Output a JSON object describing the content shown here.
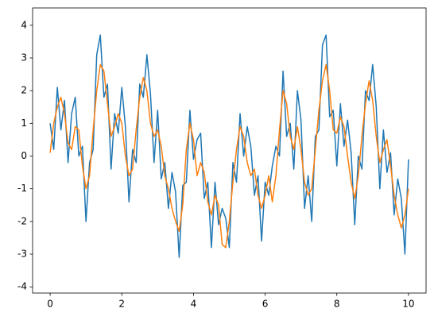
{
  "chart_data": {
    "type": "line",
    "x": [
      0,
      0.1,
      0.2,
      0.3,
      0.4,
      0.5,
      0.6,
      0.7,
      0.8,
      0.9,
      1,
      1.1,
      1.2,
      1.3,
      1.4,
      1.5,
      1.6,
      1.7,
      1.8,
      1.9,
      2,
      2.1,
      2.2,
      2.3,
      2.4,
      2.5,
      2.6,
      2.7,
      2.8,
      2.9,
      3,
      3.1,
      3.2,
      3.3,
      3.4,
      3.5,
      3.6,
      3.7,
      3.8,
      3.9,
      4,
      4.1,
      4.2,
      4.3,
      4.4,
      4.5,
      4.6,
      4.7,
      4.8,
      4.9,
      5,
      5.1,
      5.2,
      5.3,
      5.4,
      5.5,
      5.6,
      5.7,
      5.8,
      5.9,
      6,
      6.1,
      6.2,
      6.3,
      6.4,
      6.5,
      6.6,
      6.7,
      6.8,
      6.9,
      7,
      7.1,
      7.2,
      7.3,
      7.4,
      7.5,
      7.6,
      7.7,
      7.8,
      7.9,
      8,
      8.1,
      8.2,
      8.3,
      8.4,
      8.5,
      8.6,
      8.7,
      8.8,
      8.9,
      9,
      9.1,
      9.2,
      9.3,
      9.4,
      9.5,
      9.6,
      9.7,
      9.8,
      9.9,
      10
    ],
    "series": [
      {
        "color": "#1f77b4",
        "values": [
          1.0,
          0.2,
          2.1,
          0.8,
          1.7,
          -0.2,
          1.3,
          1.8,
          0.0,
          0.3,
          -2.0,
          -0.2,
          0.2,
          3.1,
          3.7,
          1.8,
          2.2,
          -0.4,
          1.3,
          0.7,
          2.1,
          0.9,
          -1.4,
          0.2,
          -0.2,
          2.2,
          1.8,
          3.1,
          1.9,
          -0.2,
          1.4,
          -0.7,
          -0.2,
          -1.6,
          -0.5,
          -1.1,
          -3.1,
          -0.9,
          -0.8,
          1.4,
          -0.1,
          0.5,
          0.7,
          -1.3,
          -0.8,
          -2.8,
          -0.8,
          -2.1,
          -1.6,
          -1.9,
          -2.8,
          -0.2,
          -0.8,
          1.3,
          0.0,
          0.9,
          0.3,
          -1.2,
          -0.6,
          -2.6,
          -0.8,
          -1.2,
          -0.3,
          0.3,
          0.0,
          2.6,
          0.6,
          1.0,
          -0.4,
          2.0,
          1.1,
          -1.6,
          -0.6,
          -2.0,
          0.6,
          0.8,
          3.4,
          3.7,
          1.2,
          1.4,
          -0.3,
          1.6,
          0.3,
          1.1,
          0.1,
          -2.1,
          0.0,
          -0.4,
          2.0,
          1.7,
          2.8,
          1.5,
          -1.0,
          0.8,
          -0.5,
          0.1,
          -1.8,
          -0.7,
          -1.3,
          -3.0,
          -0.1
        ]
      },
      {
        "color": "#ff7f0e",
        "values": [
          0.1,
          1.0,
          1.5,
          1.8,
          1.3,
          0.4,
          0.2,
          0.9,
          0.8,
          -0.3,
          -1.0,
          -0.6,
          0.8,
          2.0,
          2.8,
          2.6,
          1.6,
          0.6,
          0.9,
          1.3,
          1.0,
          0.0,
          -0.6,
          -0.4,
          0.8,
          1.8,
          2.4,
          2.0,
          1.0,
          0.6,
          0.8,
          0.3,
          -0.6,
          -1.0,
          -1.6,
          -2.0,
          -2.3,
          -1.5,
          0.2,
          1.0,
          0.5,
          -0.6,
          -0.2,
          -0.5,
          -1.4,
          -1.8,
          -1.2,
          -1.5,
          -2.7,
          -2.8,
          -2.0,
          -0.8,
          0.2,
          0.9,
          0.6,
          -0.2,
          -0.6,
          -0.4,
          -1.2,
          -1.6,
          -1.2,
          -0.6,
          -1.4,
          -0.6,
          0.8,
          2.0,
          1.6,
          0.6,
          0.2,
          0.9,
          0.2,
          -0.8,
          -1.2,
          -1.0,
          0.2,
          1.4,
          2.3,
          2.8,
          2.0,
          0.8,
          0.7,
          1.2,
          0.9,
          0.0,
          -0.8,
          -1.3,
          -0.6,
          0.6,
          1.6,
          2.3,
          1.7,
          0.6,
          -0.2,
          0.2,
          0.5,
          -0.3,
          -1.2,
          -1.8,
          -2.2,
          -1.8,
          -1.0
        ]
      }
    ],
    "xlim": [
      -0.49,
      10.49
    ],
    "xticks": [
      0,
      2,
      4,
      6,
      8,
      10
    ],
    "ylim": [
      -4.19,
      4.53
    ],
    "yticks": [
      -4,
      -3,
      -2,
      -1,
      0,
      1,
      2,
      3,
      4
    ]
  }
}
